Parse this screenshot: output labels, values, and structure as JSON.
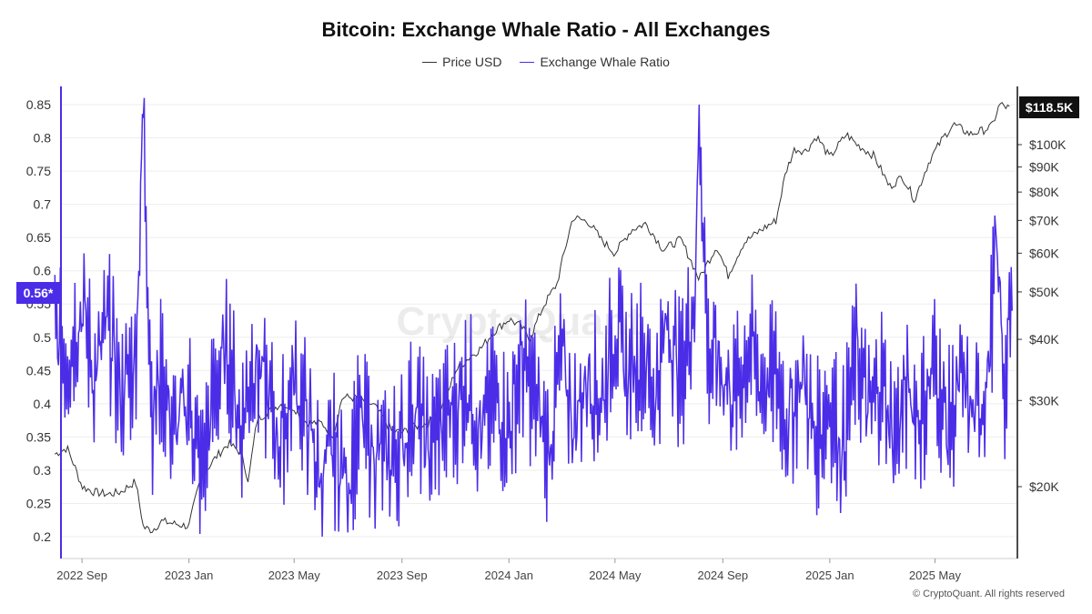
{
  "header": {
    "title": "Bitcoin: Exchange Whale Ratio - All Exchanges"
  },
  "legend": {
    "items": [
      {
        "label": "Price USD",
        "color": "#333333"
      },
      {
        "label": "Exchange Whale Ratio",
        "color": "#4b2de8"
      }
    ]
  },
  "watermark": "CryptoQuant",
  "footer": {
    "copyright": "© CryptoQuant. All rights reserved"
  },
  "badges": {
    "left_value": "0.56*",
    "right_value": "$118.5K"
  },
  "chart_data": {
    "type": "line",
    "title": "Bitcoin: Exchange Whale Ratio - All Exchanges",
    "xlabel": "",
    "ylabel": "",
    "x_ticks": [
      "2022 Sep",
      "2023 Jan",
      "2023 May",
      "2023 Sep",
      "2024 Jan",
      "2024 May",
      "2024 Sep",
      "2025 Jan",
      "2025 May"
    ],
    "left_axis": {
      "ticks": [
        0.2,
        0.25,
        0.3,
        0.35,
        0.4,
        0.45,
        0.5,
        0.55,
        0.6,
        0.65,
        0.7,
        0.75,
        0.8,
        0.85
      ],
      "tick_labels": [
        "0.2",
        "0.25",
        "0.3",
        "0.35",
        "0.4",
        "0.45",
        "0.5",
        "0.55",
        "0.6",
        "0.65",
        "0.7",
        "0.75",
        "0.8",
        "0.85"
      ],
      "range": [
        0.18,
        0.88
      ]
    },
    "right_axis": {
      "scale": "log",
      "ticks": [
        20000,
        30000,
        40000,
        50000,
        60000,
        70000,
        80000,
        90000,
        100000
      ],
      "tick_labels": [
        "$20K",
        "$30K",
        "$40K",
        "$50K",
        "$60K",
        "$70K",
        "$80K",
        "$90K",
        "$100K"
      ]
    },
    "legend_position": "top",
    "grid": "horizontal",
    "series": [
      {
        "name": "Price USD",
        "axis": "right",
        "color": "#333333",
        "x": [
          "2022-08-01",
          "2022-08-15",
          "2022-09-01",
          "2022-09-15",
          "2022-10-01",
          "2022-10-15",
          "2022-11-01",
          "2022-11-10",
          "2022-11-20",
          "2022-12-01",
          "2022-12-15",
          "2023-01-01",
          "2023-01-15",
          "2023-02-01",
          "2023-02-15",
          "2023-03-01",
          "2023-03-10",
          "2023-03-20",
          "2023-04-01",
          "2023-04-15",
          "2023-05-01",
          "2023-05-15",
          "2023-06-01",
          "2023-06-15",
          "2023-06-25",
          "2023-07-15",
          "2023-08-01",
          "2023-08-20",
          "2023-09-01",
          "2023-09-15",
          "2023-10-01",
          "2023-10-20",
          "2023-11-01",
          "2023-11-15",
          "2023-12-01",
          "2023-12-15",
          "2024-01-01",
          "2024-01-15",
          "2024-01-25",
          "2024-02-10",
          "2024-02-25",
          "2024-03-05",
          "2024-03-14",
          "2024-04-01",
          "2024-04-15",
          "2024-05-01",
          "2024-05-20",
          "2024-06-05",
          "2024-06-25",
          "2024-07-15",
          "2024-08-05",
          "2024-08-25",
          "2024-09-07",
          "2024-09-25",
          "2024-10-15",
          "2024-11-01",
          "2024-11-12",
          "2024-11-22",
          "2024-12-05",
          "2024-12-17",
          "2025-01-01",
          "2025-01-20",
          "2025-02-01",
          "2025-02-20",
          "2025-03-10",
          "2025-03-25",
          "2025-04-08",
          "2025-04-25",
          "2025-05-10",
          "2025-05-22",
          "2025-06-10",
          "2025-06-25",
          "2025-07-05",
          "2025-07-14",
          "2025-07-25"
        ],
        "values": [
          23300,
          24000,
          20000,
          19500,
          19300,
          19500,
          20500,
          16500,
          16300,
          17000,
          16800,
          16600,
          20900,
          23000,
          24500,
          23500,
          20500,
          27500,
          28400,
          29500,
          29000,
          27000,
          27000,
          25500,
          30500,
          30300,
          29200,
          26000,
          25800,
          26500,
          27000,
          29700,
          34500,
          36500,
          38500,
          41500,
          44000,
          42500,
          40000,
          47000,
          52000,
          61000,
          71000,
          69500,
          64000,
          60000,
          67000,
          69000,
          61000,
          64000,
          53000,
          62000,
          54000,
          63000,
          67000,
          70000,
          88000,
          98000,
          97000,
          104000,
          94000,
          105000,
          100000,
          95000,
          82000,
          86000,
          77000,
          93000,
          103000,
          110000,
          105000,
          107000,
          109000,
          121000,
          118500
        ]
      },
      {
        "name": "Exchange Whale Ratio",
        "axis": "left",
        "color": "#4b2de8",
        "x": [
          "2022-08-01",
          "2022-08-15",
          "2022-09-01",
          "2022-09-15",
          "2022-10-01",
          "2022-10-15",
          "2022-11-01",
          "2022-11-10",
          "2022-11-20",
          "2022-12-01",
          "2022-12-15",
          "2023-01-01",
          "2023-01-15",
          "2023-02-01",
          "2023-02-15",
          "2023-03-01",
          "2023-03-15",
          "2023-04-01",
          "2023-04-15",
          "2023-05-01",
          "2023-05-15",
          "2023-06-01",
          "2023-06-15",
          "2023-07-01",
          "2023-07-15",
          "2023-08-01",
          "2023-08-15",
          "2023-09-01",
          "2023-09-15",
          "2023-10-01",
          "2023-10-15",
          "2023-11-01",
          "2023-11-15",
          "2023-12-01",
          "2023-12-15",
          "2024-01-01",
          "2024-01-15",
          "2024-02-01",
          "2024-02-15",
          "2024-03-01",
          "2024-03-15",
          "2024-04-01",
          "2024-04-15",
          "2024-05-01",
          "2024-05-15",
          "2024-06-01",
          "2024-06-15",
          "2024-07-01",
          "2024-07-15",
          "2024-08-01",
          "2024-08-05",
          "2024-08-15",
          "2024-09-01",
          "2024-09-15",
          "2024-10-01",
          "2024-10-15",
          "2024-11-01",
          "2024-11-15",
          "2024-12-01",
          "2024-12-15",
          "2025-01-01",
          "2025-01-15",
          "2025-02-01",
          "2025-02-15",
          "2025-03-01",
          "2025-03-15",
          "2025-04-01",
          "2025-04-15",
          "2025-05-01",
          "2025-05-15",
          "2025-06-01",
          "2025-06-15",
          "2025-07-01",
          "2025-07-10",
          "2025-07-20",
          "2025-07-28"
        ],
        "values": [
          0.5,
          0.47,
          0.55,
          0.44,
          0.52,
          0.41,
          0.47,
          0.83,
          0.38,
          0.45,
          0.35,
          0.41,
          0.29,
          0.43,
          0.48,
          0.36,
          0.47,
          0.41,
          0.34,
          0.44,
          0.38,
          0.28,
          0.33,
          0.29,
          0.37,
          0.33,
          0.31,
          0.34,
          0.4,
          0.33,
          0.37,
          0.39,
          0.44,
          0.35,
          0.41,
          0.36,
          0.46,
          0.4,
          0.33,
          0.47,
          0.37,
          0.45,
          0.4,
          0.52,
          0.44,
          0.48,
          0.41,
          0.53,
          0.43,
          0.58,
          0.85,
          0.47,
          0.45,
          0.41,
          0.49,
          0.43,
          0.44,
          0.37,
          0.45,
          0.34,
          0.41,
          0.33,
          0.48,
          0.38,
          0.44,
          0.35,
          0.42,
          0.38,
          0.46,
          0.36,
          0.43,
          0.37,
          0.45,
          0.64,
          0.42,
          0.56
        ]
      }
    ]
  }
}
